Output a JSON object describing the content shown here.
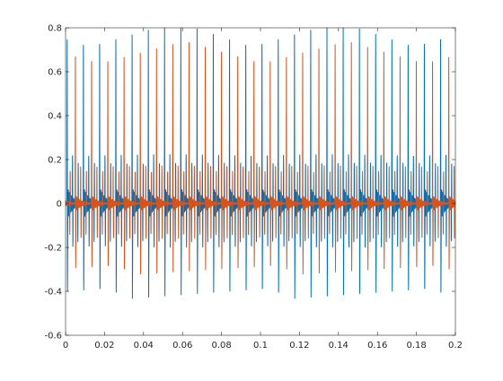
{
  "chart_data": {
    "type": "line",
    "title": "",
    "xlabel": "",
    "ylabel": "",
    "xlim": [
      0,
      0.2
    ],
    "ylim": [
      -0.6,
      0.8
    ],
    "xticks": [
      0,
      0.02,
      0.04,
      0.06,
      0.08,
      0.1,
      0.12,
      0.14,
      0.16,
      0.18,
      0.2
    ],
    "xtick_labels": [
      "0",
      "0.02",
      "0.04",
      "0.06",
      "0.08",
      "0.1",
      "0.12",
      "0.14",
      "0.16",
      "0.18",
      "0.2"
    ],
    "yticks": [
      -0.6,
      -0.4,
      -0.2,
      0,
      0.2,
      0.4,
      0.6,
      0.8
    ],
    "ytick_labels": [
      "-0.6",
      "-0.4",
      "-0.2",
      "0",
      "0.2",
      "0.4",
      "0.6",
      "0.8"
    ],
    "grid": false,
    "legend": "none",
    "series": [
      {
        "color": "#0072bd",
        "pulse_period": 0.00833,
        "first_pulse_x": 0.0007,
        "pulse_peak": 0.75,
        "pulse_trough": -0.43,
        "secondary_peak": 0.2,
        "ringing_amplitude": 0.08
      },
      {
        "color": "#d95319",
        "pulse_period": 0.00833,
        "first_pulse_x": 0.0049,
        "pulse_peak": 0.7,
        "pulse_trough": -0.32,
        "secondary_peak": 0.16,
        "ringing_amplitude": 0.04
      }
    ]
  }
}
